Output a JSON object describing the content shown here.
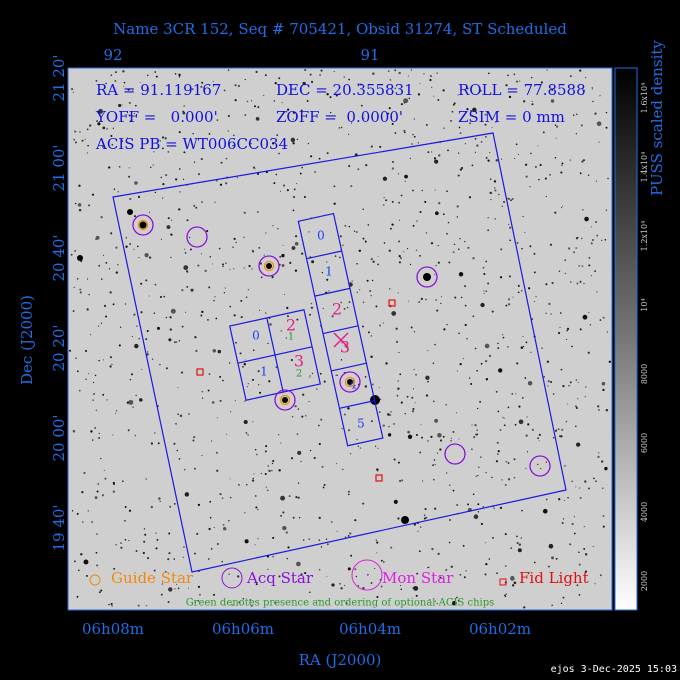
{
  "title": "Name 3CR 152, Seq # 705421, Obsid 31274, ST Scheduled",
  "info": [
    "RA = 91.119167",
    "DEC = 20.355831",
    "ROLL = 77.8588",
    "YOFF =   0.000'",
    "ZOFF =  0.0000'",
    "ZSIM = 0 mm",
    "ACIS PB = WT006CC034"
  ],
  "top_ticks": [
    "92",
    "91"
  ],
  "left_ticks": [
    "21 20'",
    "21 00'",
    "20 40'",
    "20 20'",
    "20 00'",
    "19 40'"
  ],
  "bottom_ticks": [
    "06h08m",
    "06h06m",
    "06h04m",
    "06h02m"
  ],
  "x_label": "RA (J2000)",
  "y_label": "Dec (J2000)",
  "colorbar": {
    "label": "PUSS scaled density",
    "ticks": [
      "1.6x10⁴",
      "1.4x10⁴",
      "1.2x10⁴",
      "10⁴",
      "8000",
      "6000",
      "4000",
      "2000"
    ]
  },
  "chips": {
    "s_array": [
      "0",
      "1",
      "2",
      "3",
      "4",
      "5"
    ],
    "i_array": [
      "0",
      "2",
      "1",
      "3"
    ],
    "optional": [
      "1",
      "2"
    ]
  },
  "legend": [
    "Guide Star",
    "Acq Star",
    "Mon Star",
    "Fid Light"
  ],
  "note": "Green denotes presence and ordering of optional ACIS chips",
  "footer": "ejos  3-Dec-2025 15:03"
}
